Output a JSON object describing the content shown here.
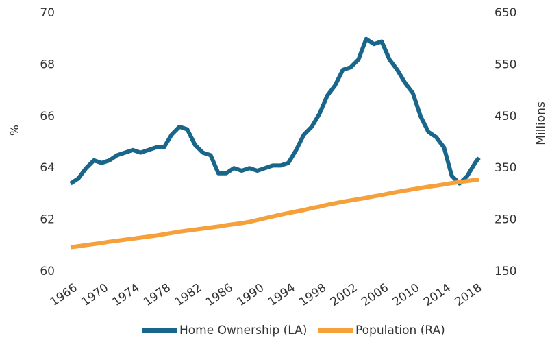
{
  "chart_data": {
    "type": "line",
    "y_label": "%",
    "y2_label": "Millions",
    "x": [
      1966,
      1967,
      1968,
      1969,
      1970,
      1971,
      1972,
      1973,
      1974,
      1975,
      1976,
      1977,
      1978,
      1979,
      1980,
      1981,
      1982,
      1983,
      1984,
      1985,
      1986,
      1987,
      1988,
      1989,
      1990,
      1991,
      1992,
      1993,
      1994,
      1995,
      1996,
      1997,
      1998,
      1999,
      2000,
      2001,
      2002,
      2003,
      2004,
      2005,
      2006,
      2007,
      2008,
      2009,
      2010,
      2011,
      2012,
      2013,
      2014,
      2015,
      2016,
      2017,
      2018,
      2018.5
    ],
    "series": [
      {
        "name": "Home Ownership (LA)",
        "color": "#19668a",
        "axis": "y",
        "values": [
          63.4,
          63.6,
          64.0,
          64.3,
          64.2,
          64.3,
          64.5,
          64.6,
          64.7,
          64.6,
          64.7,
          64.8,
          64.8,
          65.3,
          65.6,
          65.5,
          64.9,
          64.6,
          64.5,
          63.8,
          63.8,
          64.0,
          63.9,
          64.0,
          63.9,
          64.0,
          64.1,
          64.1,
          64.2,
          64.7,
          65.3,
          65.6,
          66.1,
          66.8,
          67.2,
          67.8,
          67.9,
          68.2,
          69.0,
          68.8,
          68.9,
          68.2,
          67.8,
          67.3,
          66.9,
          66.0,
          65.4,
          65.2,
          64.8,
          63.7,
          63.4,
          63.7,
          64.2,
          64.4
        ]
      },
      {
        "name": "Population (RA)",
        "color": "#f5a03a",
        "axis": "y2",
        "values": [
          197,
          199,
          201,
          203,
          205,
          207.5,
          209.5,
          211.5,
          213.5,
          215.5,
          217.5,
          219.5,
          222,
          224.5,
          227,
          229,
          231,
          233,
          235,
          237,
          239.5,
          241.5,
          243.5,
          246,
          249.5,
          253,
          256.5,
          260,
          263,
          266,
          269,
          272.5,
          275.5,
          279,
          282,
          285,
          287.5,
          290,
          292.5,
          295.5,
          298,
          301,
          304,
          306.5,
          309,
          311.5,
          314,
          316,
          318.5,
          321,
          323,
          325,
          327,
          328
        ]
      }
    ],
    "xlim": [
      1966,
      2019
    ],
    "xticks": [
      1966,
      1970,
      1974,
      1978,
      1982,
      1986,
      1990,
      1994,
      1998,
      2002,
      2006,
      2010,
      2014,
      2018
    ],
    "ylim": [
      60,
      70
    ],
    "yticks": [
      60,
      62,
      64,
      66,
      68,
      70
    ],
    "y2lim": [
      150,
      650
    ],
    "y2ticks": [
      150,
      250,
      350,
      450,
      550,
      650
    ],
    "grid": false,
    "legend": "bottom"
  }
}
